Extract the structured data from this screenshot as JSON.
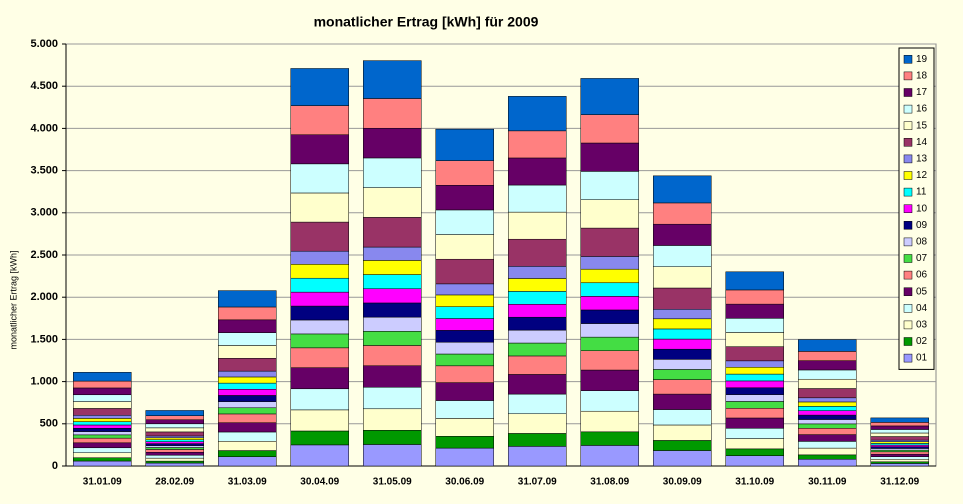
{
  "chart_data": {
    "type": "stacked_bar",
    "title": "monatlicher Ertrag [kWh] für 2009",
    "y_label": "monatlicher Ertrag [kWh]",
    "categories": [
      "31.01.09",
      "28.02.09",
      "31.03.09",
      "30.04.09",
      "31.05.09",
      "30.06.09",
      "31.07.09",
      "31.08.09",
      "30.09.09",
      "31.10.09",
      "30.11.09",
      "31.12.09"
    ],
    "ylim": [
      0,
      5000
    ],
    "yticks": [
      0,
      500,
      {
        "value": 1000,
        "label": "1.000"
      },
      {
        "value": 1500,
        "label": "1.500"
      },
      {
        "value": 2000,
        "label": "2.000"
      },
      {
        "value": 2500,
        "label": "2.500"
      },
      {
        "value": 3000,
        "label": "3.000"
      },
      {
        "value": 3500,
        "label": "3.500"
      },
      {
        "value": 4000,
        "label": "4.000"
      },
      {
        "value": 4500,
        "label": "4.500"
      },
      {
        "value": 5000,
        "label": "5.000"
      }
    ],
    "grid": true,
    "legend": "right",
    "series": [
      {
        "name": "01",
        "color": "#9999ff",
        "values": [
          59,
          35,
          110,
          250,
          255,
          212,
          233,
          244,
          183,
          122,
          80,
          30
        ]
      },
      {
        "name": "02",
        "color": "#009900",
        "values": [
          39,
          23,
          73,
          165,
          168,
          140,
          153,
          161,
          120,
          81,
          52,
          20
        ]
      },
      {
        "name": "03",
        "color": "#ffffcc",
        "values": [
          59,
          35,
          110,
          250,
          255,
          212,
          233,
          244,
          183,
          122,
          80,
          30
        ]
      },
      {
        "name": "04",
        "color": "#ccffff",
        "values": [
          59,
          35,
          110,
          250,
          255,
          212,
          233,
          244,
          183,
          122,
          80,
          30
        ]
      },
      {
        "name": "05",
        "color": "#660066",
        "values": [
          59,
          35,
          110,
          250,
          255,
          212,
          233,
          244,
          183,
          122,
          80,
          30
        ]
      },
      {
        "name": "06",
        "color": "#ff8080",
        "values": [
          55,
          33,
          104,
          235,
          240,
          199,
          219,
          229,
          172,
          115,
          75,
          28
        ]
      },
      {
        "name": "07",
        "color": "#44dd44",
        "values": [
          39,
          23,
          73,
          165,
          168,
          140,
          153,
          161,
          120,
          81,
          52,
          20
        ]
      },
      {
        "name": "08",
        "color": "#ccccff",
        "values": [
          39,
          23,
          73,
          165,
          168,
          140,
          153,
          161,
          120,
          81,
          52,
          20
        ]
      },
      {
        "name": "09",
        "color": "#000080",
        "values": [
          39,
          23,
          73,
          165,
          168,
          140,
          153,
          161,
          120,
          81,
          52,
          20
        ]
      },
      {
        "name": "10",
        "color": "#ff00ff",
        "values": [
          39,
          23,
          73,
          165,
          168,
          140,
          153,
          161,
          120,
          81,
          52,
          20
        ]
      },
      {
        "name": "11",
        "color": "#00ffff",
        "values": [
          39,
          23,
          73,
          165,
          168,
          140,
          153,
          161,
          120,
          81,
          52,
          20
        ]
      },
      {
        "name": "12",
        "color": "#ffff00",
        "values": [
          39,
          23,
          73,
          165,
          168,
          140,
          153,
          161,
          120,
          81,
          52,
          20
        ]
      },
      {
        "name": "13",
        "color": "#8888ee",
        "values": [
          37,
          22,
          69,
          155,
          158,
          131,
          144,
          151,
          113,
          76,
          49,
          19
        ]
      },
      {
        "name": "14",
        "color": "#993366",
        "values": [
          81,
          48,
          152,
          345,
          352,
          292,
          321,
          336,
          252,
          168,
          110,
          42
        ]
      },
      {
        "name": "15",
        "color": "#ffffcc",
        "values": [
          81,
          48,
          152,
          345,
          352,
          292,
          321,
          336,
          252,
          168,
          110,
          42
        ]
      },
      {
        "name": "16",
        "color": "#ccffff",
        "values": [
          81,
          48,
          152,
          345,
          352,
          292,
          321,
          336,
          252,
          168,
          110,
          42
        ]
      },
      {
        "name": "17",
        "color": "#660066",
        "values": [
          81,
          48,
          152,
          345,
          352,
          292,
          321,
          336,
          252,
          168,
          110,
          42
        ]
      },
      {
        "name": "18",
        "color": "#ff8080",
        "values": [
          81,
          48,
          152,
          345,
          352,
          292,
          321,
          336,
          252,
          168,
          110,
          42
        ]
      },
      {
        "name": "19",
        "color": "#0066cc",
        "values": [
          104,
          62,
          194,
          440,
          449,
          373,
          409,
          429,
          321,
          215,
          140,
          53
        ]
      }
    ]
  }
}
